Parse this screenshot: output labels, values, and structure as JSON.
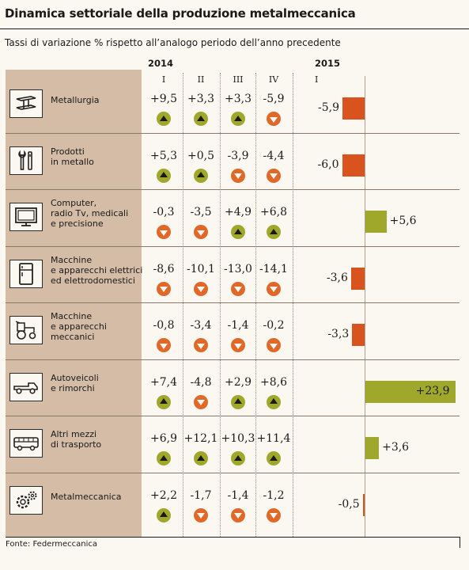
{
  "title": "Dinamica settoriale della produzione metalmeccanica",
  "subtitle": "Tassi di variazione % rispetto all’analogo periodo dell’anno precedente",
  "source": "Fonte: Federmeccanica",
  "year_2014": "2014",
  "year_2015": "2015",
  "quarters_2014": [
    "I",
    "II",
    "III",
    "IV"
  ],
  "quarter_2015": "I",
  "colors": {
    "up": "#a0a82c",
    "down": "#e0692a",
    "bar_neg": "#d9531e",
    "bar_pos": "#a0a82c",
    "sidebar": "#d5bca7"
  },
  "chart_data": {
    "type": "bar",
    "title": "Dinamica settoriale della produzione metalmeccanica",
    "subtitle": "Tassi di variazione % rispetto all’analogo periodo dell’anno precedente",
    "orientation": "horizontal",
    "categories": [
      "Metallurgia",
      "Prodotti in metallo",
      "Computer, radio Tv, medicali e precisione",
      "Macchine e apparecchi elettrici ed elettrodomestici",
      "Macchine e apparecchi meccanici",
      "Autoveicoli e rimorchi",
      "Altri mezzi di trasporto",
      "Metalmeccanica"
    ],
    "values": [
      -5.9,
      -6.0,
      5.6,
      -3.6,
      -3.3,
      23.9,
      3.6,
      -0.5
    ],
    "xlim": [
      -6.0,
      23.9
    ],
    "grid": false
  },
  "rows": [
    {
      "label_lines": [
        "Metallurgia"
      ],
      "icon": "steel-beam-icon",
      "q": [
        {
          "text": "+9,5",
          "dir": "up"
        },
        {
          "text": "+3,3",
          "dir": "up"
        },
        {
          "text": "+3,3",
          "dir": "up"
        },
        {
          "text": "-5,9",
          "dir": "down"
        }
      ],
      "value_2015": -5.9,
      "label_2015": "-5,9"
    },
    {
      "label_lines": [
        "Prodotti",
        "in metallo"
      ],
      "icon": "wrench-icon",
      "q": [
        {
          "text": "+5,3",
          "dir": "up"
        },
        {
          "text": "+0,5",
          "dir": "up"
        },
        {
          "text": "-3,9",
          "dir": "down"
        },
        {
          "text": "-4,4",
          "dir": "down"
        }
      ],
      "value_2015": -6.0,
      "label_2015": "-6,0"
    },
    {
      "label_lines": [
        "Computer,",
        "radio Tv, medicali",
        "e precisione"
      ],
      "icon": "monitor-icon",
      "q": [
        {
          "text": "-0,3",
          "dir": "down"
        },
        {
          "text": "-3,5",
          "dir": "down"
        },
        {
          "text": "+4,9",
          "dir": "up"
        },
        {
          "text": "+6,8",
          "dir": "up"
        }
      ],
      "value_2015": 5.6,
      "label_2015": "+5,6"
    },
    {
      "label_lines": [
        "Macchine",
        "e apparecchi elettrici",
        "ed elettrodomestici"
      ],
      "icon": "fridge-icon",
      "q": [
        {
          "text": "-8,6",
          "dir": "down"
        },
        {
          "text": "-10,1",
          "dir": "down"
        },
        {
          "text": "-13,0",
          "dir": "down"
        },
        {
          "text": "-14,1",
          "dir": "down"
        }
      ],
      "value_2015": -3.6,
      "label_2015": "-3,6"
    },
    {
      "label_lines": [
        "Macchine",
        "e apparecchi",
        "meccanici"
      ],
      "icon": "tractor-icon",
      "q": [
        {
          "text": "-0,8",
          "dir": "down"
        },
        {
          "text": "-3,4",
          "dir": "down"
        },
        {
          "text": "-1,4",
          "dir": "down"
        },
        {
          "text": "-0,2",
          "dir": "down"
        }
      ],
      "value_2015": -3.3,
      "label_2015": "-3,3"
    },
    {
      "label_lines": [
        "Autoveicoli",
        "e rimorchi"
      ],
      "icon": "truck-icon",
      "q": [
        {
          "text": "+7,4",
          "dir": "up"
        },
        {
          "text": "-4,8",
          "dir": "down"
        },
        {
          "text": "+2,9",
          "dir": "up"
        },
        {
          "text": "+8,6",
          "dir": "up"
        }
      ],
      "value_2015": 23.9,
      "label_2015": "+23,9"
    },
    {
      "label_lines": [
        "Altri mezzi",
        "di trasporto"
      ],
      "icon": "bus-icon",
      "q": [
        {
          "text": "+6,9",
          "dir": "up"
        },
        {
          "text": "+12,1",
          "dir": "up"
        },
        {
          "text": "+10,3",
          "dir": "up"
        },
        {
          "text": "+11,4",
          "dir": "up"
        }
      ],
      "value_2015": 3.6,
      "label_2015": "+3,6"
    },
    {
      "label_lines": [
        "Metalmeccanica"
      ],
      "icon": "gears-icon",
      "q": [
        {
          "text": "+2,2",
          "dir": "up"
        },
        {
          "text": "-1,7",
          "dir": "down"
        },
        {
          "text": "-1,4",
          "dir": "down"
        },
        {
          "text": "-1,2",
          "dir": "down"
        }
      ],
      "value_2015": -0.5,
      "label_2015": "-0,5"
    }
  ]
}
